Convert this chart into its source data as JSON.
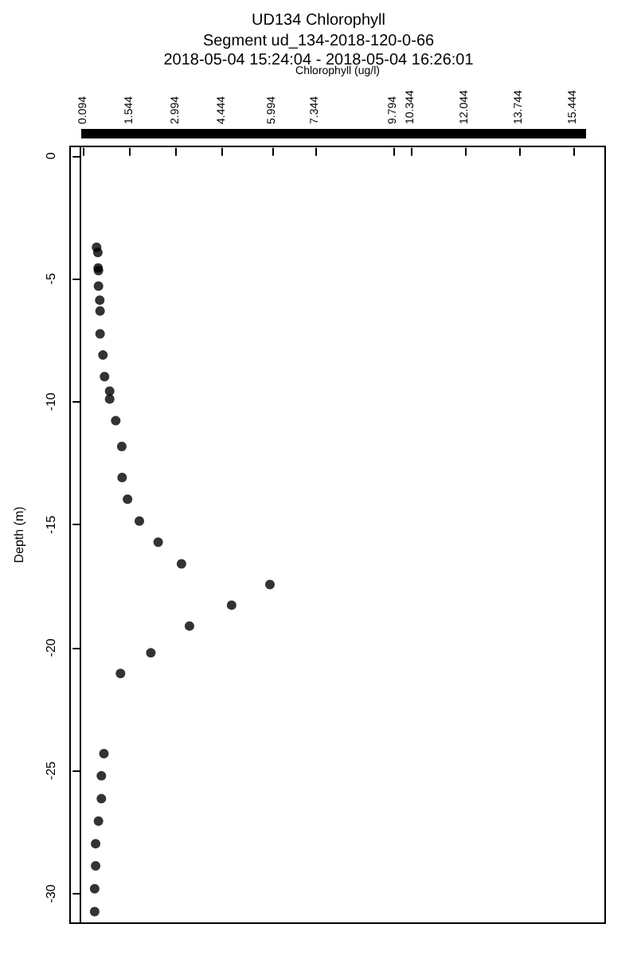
{
  "chart_data": {
    "type": "scatter",
    "title": "UD134 Chlorophyll",
    "subtitle": "Segment ud_134-2018-120-0-66\n2018-05-04 15:24:04 - 2018-05-04 16:26:01",
    "xlabel": "Chlorophyll (ug/l)",
    "ylabel": "Depth (m)",
    "series": [
      {
        "color": "#000000",
        "x": [
          0.5,
          0.54,
          0.55,
          0.56,
          0.56,
          0.6,
          0.61,
          0.61,
          0.7,
          0.75,
          0.91,
          0.91,
          1.1,
          1.29,
          1.3,
          1.47,
          1.84,
          2.43,
          3.16,
          5.93,
          4.73,
          3.41,
          2.2,
          1.25,
          0.73,
          0.65,
          0.65,
          0.56,
          0.47,
          0.47,
          0.44,
          0.44
        ],
        "values": [
          -3.72,
          -3.93,
          -4.56,
          -4.67,
          -5.3,
          -5.87,
          -6.31,
          -7.24,
          -8.1,
          -8.98,
          -9.57,
          -9.89,
          -10.77,
          -11.82,
          -13.08,
          -13.96,
          -14.85,
          -15.71,
          -16.59,
          -17.43,
          -18.27,
          -19.12,
          -20.21,
          -21.05,
          -24.31,
          -25.21,
          -26.14,
          -27.05,
          -27.97,
          -28.87,
          -29.8,
          -30.73
        ]
      }
    ],
    "xlim": [
      -0.33,
      16.43
    ],
    "xticks": [
      0.094,
      1.544,
      2.994,
      4.444,
      5.994,
      7.344,
      9.794,
      10.344,
      12.044,
      13.744,
      15.444
    ],
    "ylim": [
      -31.2,
      0.38
    ],
    "yticks": [
      0,
      -5,
      -10,
      -15,
      -20,
      -25,
      -30
    ],
    "grid": false,
    "marker": "circle"
  }
}
